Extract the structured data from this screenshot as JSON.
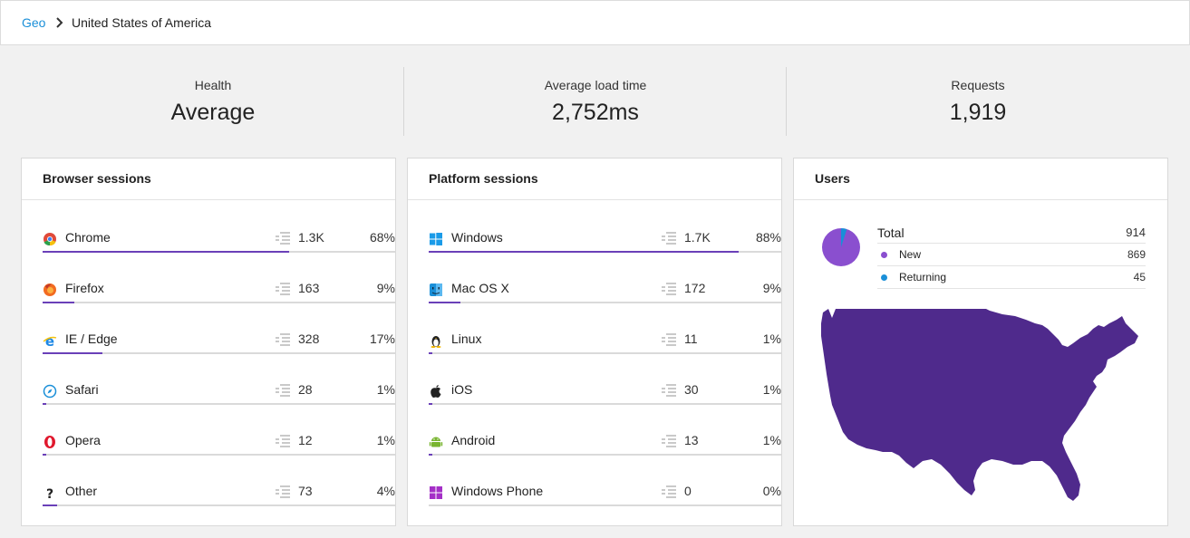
{
  "breadcrumb": {
    "parent": "Geo",
    "current": "United States of America"
  },
  "stats": [
    {
      "label": "Health",
      "value": "Average"
    },
    {
      "label": "Average load time",
      "value": "2,752ms"
    },
    {
      "label": "Requests",
      "value": "1,919"
    }
  ],
  "browser_sessions": {
    "title": "Browser sessions",
    "rows": [
      {
        "name": "Chrome",
        "icon": "chrome-icon",
        "count": "1.3K",
        "pct": "68%",
        "share": 0.7
      },
      {
        "name": "Firefox",
        "icon": "firefox-icon",
        "count": "163",
        "pct": "9%",
        "share": 0.09
      },
      {
        "name": "IE / Edge",
        "icon": "ie-edge-icon",
        "count": "328",
        "pct": "17%",
        "share": 0.17
      },
      {
        "name": "Safari",
        "icon": "safari-icon",
        "count": "28",
        "pct": "1%",
        "share": 0.01
      },
      {
        "name": "Opera",
        "icon": "opera-icon",
        "count": "12",
        "pct": "1%",
        "share": 0.01
      },
      {
        "name": "Other",
        "icon": "question-icon",
        "count": "73",
        "pct": "4%",
        "share": 0.04
      }
    ]
  },
  "platform_sessions": {
    "title": "Platform sessions",
    "rows": [
      {
        "name": "Windows",
        "icon": "windows-icon",
        "count": "1.7K",
        "pct": "88%",
        "share": 0.88
      },
      {
        "name": "Mac OS X",
        "icon": "finder-icon",
        "count": "172",
        "pct": "9%",
        "share": 0.09
      },
      {
        "name": "Linux",
        "icon": "linux-icon",
        "count": "11",
        "pct": "1%",
        "share": 0.01
      },
      {
        "name": "iOS",
        "icon": "apple-icon",
        "count": "30",
        "pct": "1%",
        "share": 0.01
      },
      {
        "name": "Android",
        "icon": "android-icon",
        "count": "13",
        "pct": "1%",
        "share": 0.01
      },
      {
        "name": "Windows Phone",
        "icon": "windows-phone-icon",
        "count": "0",
        "pct": "0%",
        "share": 0.0
      }
    ]
  },
  "users": {
    "title": "Users",
    "total_label": "Total",
    "total": "914",
    "new_label": "New",
    "new": "869",
    "returning_label": "Returning",
    "returning": "45",
    "new_color": "#8a4fcf",
    "returning_color": "#1a8fd8",
    "map_color": "#4f2a8c"
  },
  "colors": {
    "accent": "#6a40b8",
    "link": "#1a8fd8"
  }
}
